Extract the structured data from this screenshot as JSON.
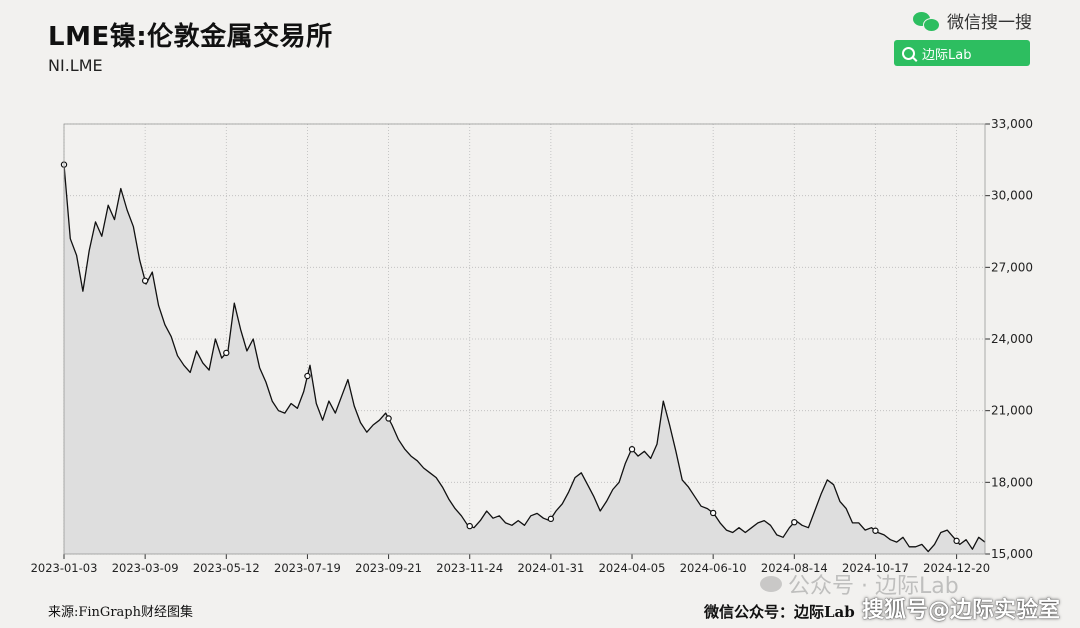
{
  "header": {
    "title": "LME镍:伦敦金属交易所",
    "subtitle": "NI.LME"
  },
  "wechat": {
    "label": "微信搜一搜",
    "search_label": "边际Lab"
  },
  "footer": {
    "source": "来源:FinGraph财经图集",
    "right_text": "微信公众号：边际Lab",
    "watermark_1": "公众号 · 边际Lab",
    "watermark_2": "搜狐号@边际实验室"
  },
  "colors": {
    "line": "#111111",
    "area": "#dedede",
    "grid": "#bbbbbb",
    "wechat_green": "#2dbe60"
  },
  "chart_data": {
    "type": "area",
    "ylim": [
      15000,
      33000
    ],
    "yticks": [
      15000,
      18000,
      21000,
      24000,
      27000,
      30000,
      33000
    ],
    "ytick_labels": [
      "15,000",
      "18,000",
      "21,000",
      "24,000",
      "27,000",
      "30,000",
      "33,000"
    ],
    "xtick_labels": [
      "2023-01-03",
      "2023-03-09",
      "2023-05-12",
      "2023-07-19",
      "2023-09-21",
      "2023-11-24",
      "2024-01-31",
      "2024-04-05",
      "2024-06-10",
      "2024-08-14",
      "2024-10-17",
      "2024-12-20"
    ],
    "y_axis_position": "right",
    "grid": true,
    "markers_at_ticks": true,
    "values": [
      31300,
      28200,
      27500,
      26000,
      27700,
      28900,
      28300,
      29600,
      29000,
      30300,
      29400,
      28700,
      27300,
      26300,
      26800,
      25400,
      24600,
      24100,
      23300,
      22900,
      22600,
      23500,
      23000,
      22700,
      24000,
      23200,
      23500,
      25500,
      24400,
      23500,
      24000,
      22800,
      22200,
      21400,
      21000,
      20900,
      21300,
      21100,
      21800,
      22900,
      21300,
      20600,
      21400,
      20900,
      21600,
      22300,
      21200,
      20500,
      20100,
      20400,
      20600,
      20900,
      20400,
      19800,
      19400,
      19100,
      18900,
      18600,
      18400,
      18200,
      17800,
      17300,
      16900,
      16600,
      16200,
      16100,
      16400,
      16800,
      16500,
      16600,
      16300,
      16200,
      16400,
      16200,
      16600,
      16700,
      16500,
      16400,
      16800,
      17100,
      17600,
      18200,
      18400,
      17900,
      17400,
      16800,
      17200,
      17700,
      18000,
      18800,
      19400,
      19100,
      19300,
      19000,
      19600,
      21400,
      20400,
      19300,
      18100,
      17800,
      17400,
      17000,
      16900,
      16700,
      16300,
      16000,
      15900,
      16100,
      15900,
      16100,
      16300,
      16400,
      16200,
      15800,
      15700,
      16100,
      16400,
      16200,
      16100,
      16800,
      17500,
      18100,
      17900,
      17200,
      16900,
      16300,
      16300,
      16000,
      16100,
      15900,
      15800,
      15600,
      15500,
      15700,
      15300,
      15300,
      15400,
      15100,
      15400,
      15900,
      16000,
      15700,
      15400,
      15600,
      15200,
      15700,
      15500
    ]
  }
}
